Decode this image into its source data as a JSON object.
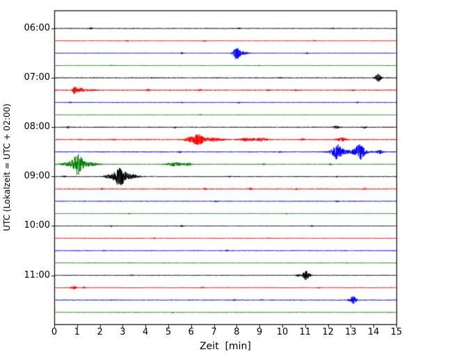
{
  "chart_data": {
    "type": "line",
    "subtype": "seismogram-dayplot",
    "title": "",
    "xlabel": "Zeit  [min]",
    "ylabel": "UTC (Lokalzeit = UTC + 02:00)",
    "xlim": [
      0,
      15
    ],
    "xticks": [
      0,
      1,
      2,
      3,
      4,
      5,
      6,
      7,
      8,
      9,
      10,
      11,
      12,
      13,
      14,
      15
    ],
    "minutes_per_line": 15,
    "rows": 24,
    "hour_labels": [
      "06:00",
      "07:00",
      "08:00",
      "09:00",
      "10:00",
      "11:00"
    ],
    "line_color_cycle": [
      "#000000",
      "#ff0000",
      "#0000ff",
      "#008000"
    ],
    "grid": false,
    "legend": false,
    "event_format": [
      "center_x_min",
      "gaussian_sigma_min",
      "amplitude_px"
    ],
    "traces": [
      {
        "time": "06:00",
        "color": "#000000",
        "noise": 0.4,
        "events": [
          [
            1.6,
            0.05,
            1.1
          ],
          [
            8.1,
            0.04,
            0.9
          ],
          [
            12.2,
            0.04,
            0.8
          ]
        ]
      },
      {
        "time": "06:15",
        "color": "#ff0000",
        "noise": 0.4,
        "events": [
          [
            3.2,
            0.04,
            0.8
          ],
          [
            6.6,
            0.04,
            0.9
          ],
          [
            11.4,
            0.04,
            0.8
          ]
        ]
      },
      {
        "time": "06:30",
        "color": "#0000ff",
        "noise": 0.45,
        "events": [
          [
            8.0,
            0.1,
            8.0
          ],
          [
            8.25,
            0.2,
            1.8
          ],
          [
            5.6,
            0.04,
            0.9
          ],
          [
            11.1,
            0.04,
            0.8
          ]
        ]
      },
      {
        "time": "06:45",
        "color": "#008000",
        "noise": 0.35,
        "events": [
          [
            2.5,
            0.04,
            0.6
          ],
          [
            9.0,
            0.03,
            0.6
          ]
        ]
      },
      {
        "time": "07:00",
        "color": "#000000",
        "noise": 0.45,
        "events": [
          [
            14.2,
            0.09,
            5.5
          ],
          [
            9.9,
            0.04,
            1.0
          ],
          [
            4.3,
            0.03,
            0.7
          ]
        ]
      },
      {
        "time": "07:15",
        "color": "#ff0000",
        "noise": 0.55,
        "events": [
          [
            0.9,
            0.06,
            5.0
          ],
          [
            1.15,
            0.12,
            3.0
          ],
          [
            1.6,
            0.15,
            1.4
          ],
          [
            4.1,
            0.06,
            1.6
          ],
          [
            6.4,
            0.05,
            1.5
          ],
          [
            9.4,
            0.05,
            1.2
          ],
          [
            10.6,
            0.04,
            1.0
          ],
          [
            13.1,
            0.04,
            0.9
          ]
        ]
      },
      {
        "time": "07:30",
        "color": "#0000ff",
        "noise": 0.45,
        "events": [
          [
            0.7,
            0.04,
            1.0
          ],
          [
            5.6,
            0.04,
            1.0
          ],
          [
            8.1,
            0.03,
            0.8
          ],
          [
            13.3,
            0.04,
            0.9
          ]
        ]
      },
      {
        "time": "07:45",
        "color": "#008000",
        "noise": 0.35,
        "events": [
          [
            6.4,
            0.03,
            0.6
          ]
        ]
      },
      {
        "time": "08:00",
        "color": "#000000",
        "noise": 0.5,
        "events": [
          [
            0.6,
            0.05,
            1.2
          ],
          [
            5.3,
            0.04,
            1.0
          ],
          [
            12.35,
            0.1,
            1.7
          ],
          [
            13.6,
            0.06,
            1.3
          ]
        ]
      },
      {
        "time": "08:15",
        "color": "#ff0000",
        "noise": 0.55,
        "events": [
          [
            6.3,
            0.2,
            7.5
          ],
          [
            5.85,
            0.1,
            3.0
          ],
          [
            7.0,
            0.3,
            2.2
          ],
          [
            8.5,
            0.25,
            2.2
          ],
          [
            9.1,
            0.2,
            2.0
          ],
          [
            10.9,
            0.06,
            1.5
          ],
          [
            12.6,
            0.15,
            2.4
          ],
          [
            2.6,
            0.05,
            1.0
          ]
        ]
      },
      {
        "time": "08:30",
        "color": "#0000ff",
        "noise": 0.5,
        "events": [
          [
            12.4,
            0.16,
            9.0
          ],
          [
            13.4,
            0.14,
            9.5
          ],
          [
            13.0,
            0.6,
            2.2
          ],
          [
            14.3,
            0.1,
            2.0
          ],
          [
            5.5,
            0.04,
            1.0
          ],
          [
            9.9,
            0.04,
            0.9
          ]
        ]
      },
      {
        "time": "08:45",
        "color": "#008000",
        "noise": 0.5,
        "events": [
          [
            1.05,
            0.15,
            13.0
          ],
          [
            0.8,
            0.3,
            3.5
          ],
          [
            1.6,
            0.25,
            2.5
          ],
          [
            5.3,
            0.25,
            2.6
          ],
          [
            5.9,
            0.12,
            1.8
          ],
          [
            9.2,
            0.04,
            0.8
          ],
          [
            12.1,
            0.04,
            0.8
          ]
        ]
      },
      {
        "time": "09:00",
        "color": "#000000",
        "noise": 0.5,
        "events": [
          [
            2.85,
            0.18,
            12.0
          ],
          [
            3.3,
            0.3,
            3.2
          ],
          [
            2.35,
            0.12,
            2.0
          ],
          [
            0.45,
            0.04,
            1.0
          ],
          [
            7.7,
            0.03,
            0.7
          ],
          [
            12.4,
            0.03,
            0.7
          ]
        ]
      },
      {
        "time": "09:15",
        "color": "#ff0000",
        "noise": 0.5,
        "events": [
          [
            2.1,
            0.04,
            1.0
          ],
          [
            6.6,
            0.05,
            1.3
          ],
          [
            8.6,
            0.05,
            1.2
          ],
          [
            10.6,
            0.04,
            1.0
          ],
          [
            13.6,
            0.06,
            1.4
          ]
        ]
      },
      {
        "time": "09:30",
        "color": "#0000ff",
        "noise": 0.4,
        "events": [
          [
            7.1,
            0.04,
            0.9
          ],
          [
            12.4,
            0.04,
            0.9
          ]
        ]
      },
      {
        "time": "09:45",
        "color": "#008000",
        "noise": 0.35,
        "events": [
          [
            3.3,
            0.03,
            0.6
          ],
          [
            10.2,
            0.03,
            0.6
          ]
        ]
      },
      {
        "time": "10:00",
        "color": "#000000",
        "noise": 0.45,
        "events": [
          [
            2.5,
            0.04,
            1.0
          ],
          [
            5.6,
            0.04,
            0.9
          ],
          [
            11.3,
            0.03,
            0.7
          ]
        ]
      },
      {
        "time": "10:15",
        "color": "#ff0000",
        "noise": 0.45,
        "events": [
          [
            4.4,
            0.03,
            0.8
          ],
          [
            9.4,
            0.03,
            0.8
          ]
        ]
      },
      {
        "time": "10:30",
        "color": "#0000ff",
        "noise": 0.4,
        "events": [
          [
            2.2,
            0.03,
            0.7
          ],
          [
            7.6,
            0.04,
            0.9
          ]
        ]
      },
      {
        "time": "10:45",
        "color": "#008000",
        "noise": 0.35,
        "events": [
          [
            12.8,
            0.03,
            0.6
          ]
        ]
      },
      {
        "time": "11:00",
        "color": "#000000",
        "noise": 0.5,
        "events": [
          [
            11.05,
            0.11,
            6.5
          ],
          [
            10.7,
            0.06,
            1.5
          ],
          [
            3.4,
            0.03,
            0.7
          ]
        ]
      },
      {
        "time": "11:15",
        "color": "#ff0000",
        "noise": 0.5,
        "events": [
          [
            0.85,
            0.08,
            2.4
          ],
          [
            1.3,
            0.05,
            1.2
          ],
          [
            6.5,
            0.04,
            0.9
          ],
          [
            11.6,
            0.03,
            0.7
          ]
        ]
      },
      {
        "time": "11:30",
        "color": "#0000ff",
        "noise": 0.45,
        "events": [
          [
            13.1,
            0.1,
            5.5
          ],
          [
            7.9,
            0.04,
            1.0
          ],
          [
            9.1,
            0.03,
            0.8
          ]
        ]
      },
      {
        "time": "11:45",
        "color": "#008000",
        "noise": 0.35,
        "events": [
          [
            5.2,
            0.03,
            0.6
          ]
        ]
      }
    ]
  }
}
